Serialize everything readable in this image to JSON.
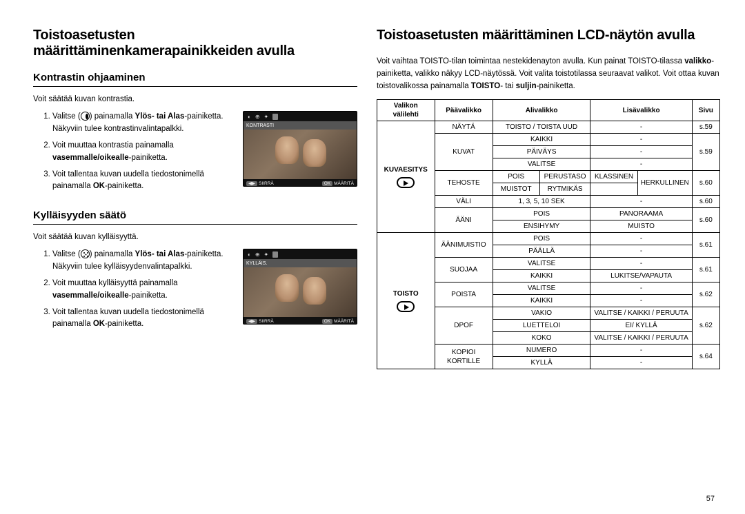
{
  "page_number": "57",
  "left": {
    "title": "Toistoasetusten määrittäminenkamerapainikkeiden avulla",
    "sections": [
      {
        "heading": "Kontrastin ohjaaminen",
        "intro": "Voit säätää kuvan kontrastia.",
        "screenshot": {
          "label": "KONTRASTI",
          "bottom_left": "SIIRRÄ",
          "bottom_right": "MÄÄRITÄ",
          "bl_key": "◀▶",
          "br_key": "OK"
        },
        "steps_html": [
          "Valitse (<span class='circ-icon' data-name='contrast-circle-icon' data-interactable='false'></span>) painamalla <b>Ylös- tai Alas</b>-painiketta. Näkyviin tulee kontrastinvalintapalkki.",
          "Voit muuttaa kontrastia painamalla <b>vasemmalle/oikealle</b>-painiketta.",
          "Voit tallentaa kuvan uudella tiedostonimellä painamalla <b>OK</b>-painiketta."
        ]
      },
      {
        "heading": "Kylläisyyden säätö",
        "intro": "Voit säätää kuvan kylläisyyttä.",
        "screenshot": {
          "label": "KYLLÄIS.",
          "bottom_left": "SIIRRÄ",
          "bottom_right": "MÄÄRITÄ",
          "bl_key": "◀▶",
          "br_key": "OK"
        },
        "steps_html": [
          "Valitse (<span class='circ-icon dots' data-name='saturation-circle-icon' data-interactable='false'></span>) painamalla <b>Ylös- tai Alas</b>-painiketta. Näkyviin tulee kylläisyydenvalintapalkki.",
          "Voit muuttaa kylläisyyttä painamalla <b>vasemmalle/oikealle</b>-painiketta.",
          "Voit tallentaa kuvan uudella tiedostonimellä painamalla <b>OK</b>-painiketta."
        ]
      }
    ]
  },
  "right": {
    "title": "Toistoasetusten määrittäminen LCD-näytön avulla",
    "desc_html": "Voit vaihtaa TOISTO-tilan toimintaa nestekidenayton avulla. Kun painat TOISTO-tilassa <b>valikko</b>-painiketta, valikko näkyy LCD-näytössä. Voit valita toistotilassa seuraavat valikot. Voit ottaa kuvan toistovalikossa painamalla <b>TOISTO</b>- tai <b>suljin</b>-painiketta.",
    "table": {
      "headers": [
        "Valikon välilehti",
        "Päävalikko",
        "Alivalikko",
        "Lisävalikko",
        "Sivu"
      ],
      "header_colspans": [
        1,
        1,
        2,
        2,
        1
      ],
      "col_widths": [
        "90px",
        "90px",
        "76px",
        "76px",
        "70px",
        "70px",
        "46px"
      ],
      "rows": [
        {
          "tab": {
            "text": "KUVAESITYS",
            "icon": "kuva",
            "rowspan": 9
          },
          "paa": {
            "text": "NÄYTÄ",
            "rowspan": 1
          },
          "ali": {
            "text": "TOISTO / TOISTA UUD",
            "colspan": 2
          },
          "lisa": {
            "text": "-",
            "colspan": 2
          },
          "sivu": {
            "text": "s.59",
            "rowspan": 1
          }
        },
        {
          "paa": {
            "text": "KUVAT",
            "rowspan": 3
          },
          "ali": {
            "text": "KAIKKI",
            "colspan": 2
          },
          "lisa": {
            "text": "-",
            "colspan": 2
          },
          "sivu": {
            "text": "s.59",
            "rowspan": 3,
            "skip_first": true
          }
        },
        {
          "ali": {
            "text": "PÄIVÄYS",
            "colspan": 2
          },
          "lisa": {
            "text": "-",
            "colspan": 2
          }
        },
        {
          "ali": {
            "text": "VALITSE",
            "colspan": 2
          },
          "lisa": {
            "text": "-",
            "colspan": 2
          }
        },
        {
          "paa": {
            "text": "TEHOSTE",
            "rowspan": 2
          },
          "ali": {
            "text": "POIS"
          },
          "ali2": {
            "text": "PERUSTASO"
          },
          "lisa": {
            "text": "KLASSINEN"
          },
          "lisa2": {
            "text": "HERKULLINEN",
            "rowspan": 2
          },
          "sivu": {
            "text": "s.60",
            "rowspan": 2
          }
        },
        {
          "ali": {
            "text": "MUISTOT"
          },
          "ali2": {
            "text": "RYTMIKÄS"
          },
          "lisa": {
            "text": ""
          }
        },
        {
          "paa": {
            "text": "VÄLI"
          },
          "ali": {
            "text": "1, 3, 5, 10 SEK",
            "colspan": 2
          },
          "lisa": {
            "text": "-",
            "colspan": 2
          },
          "sivu": {
            "text": "s.60"
          }
        },
        {
          "paa": {
            "text": "ÄÄNI",
            "rowspan": 2
          },
          "ali": {
            "text": "POIS",
            "colspan": 2
          },
          "lisa": {
            "text": "PANORAAMA",
            "colspan": 2
          },
          "sivu": {
            "text": "s.60",
            "rowspan": 2
          }
        },
        {
          "ali": {
            "text": "ENSIHYMY",
            "colspan": 2
          },
          "lisa": {
            "text": "MUISTO",
            "colspan": 2
          }
        },
        {
          "tab": {
            "text": "TOISTO",
            "icon": "play",
            "rowspan": 11
          },
          "paa": {
            "text": "ÄÄNIMUISTIO",
            "rowspan": 2
          },
          "ali": {
            "text": "POIS",
            "colspan": 2
          },
          "lisa": {
            "text": "-",
            "colspan": 2
          },
          "sivu": {
            "text": "s.61",
            "rowspan": 2
          }
        },
        {
          "ali": {
            "text": "PÄÄLLÄ",
            "colspan": 2
          },
          "lisa": {
            "text": "-",
            "colspan": 2
          }
        },
        {
          "paa": {
            "text": "SUOJAA",
            "rowspan": 2
          },
          "ali": {
            "text": "VALITSE",
            "colspan": 2
          },
          "lisa": {
            "text": "-",
            "colspan": 2
          },
          "sivu": {
            "text": "s.61",
            "rowspan": 2
          }
        },
        {
          "ali": {
            "text": "KAIKKI",
            "colspan": 2
          },
          "lisa": {
            "text": "LUKITSE/VAPAUTA",
            "colspan": 2
          }
        },
        {
          "paa": {
            "text": "POISTA",
            "rowspan": 2
          },
          "ali": {
            "text": "VALITSE",
            "colspan": 2
          },
          "lisa": {
            "text": "-",
            "colspan": 2
          },
          "sivu": {
            "text": "s.62",
            "rowspan": 2
          }
        },
        {
          "ali": {
            "text": "KAIKKI",
            "colspan": 2
          },
          "lisa": {
            "text": "-",
            "colspan": 2
          }
        },
        {
          "paa": {
            "text": "DPOF",
            "rowspan": 3
          },
          "ali": {
            "text": "VAKIO",
            "colspan": 2
          },
          "lisa": {
            "text": "VALITSE / KAIKKI / PERUUTA",
            "colspan": 2
          },
          "sivu": {
            "text": "s.62",
            "rowspan": 3
          }
        },
        {
          "ali": {
            "text": "LUETTELOI",
            "colspan": 2
          },
          "lisa": {
            "text": "EI/ KYLLÄ",
            "colspan": 2
          }
        },
        {
          "ali": {
            "text": "KOKO",
            "colspan": 2
          },
          "lisa": {
            "text": "VALITSE / KAIKKI / PERUUTA",
            "colspan": 2
          }
        },
        {
          "paa": {
            "text": "KOPIOI KORTILLE",
            "rowspan": 2
          },
          "ali": {
            "text": "NUMERO",
            "colspan": 2
          },
          "lisa": {
            "text": "-",
            "colspan": 2
          },
          "sivu": {
            "text": "s.64",
            "rowspan": 2
          }
        },
        {
          "ali": {
            "text": "KYLLÄ",
            "colspan": 2
          },
          "lisa": {
            "text": "-",
            "colspan": 2
          }
        }
      ]
    }
  }
}
